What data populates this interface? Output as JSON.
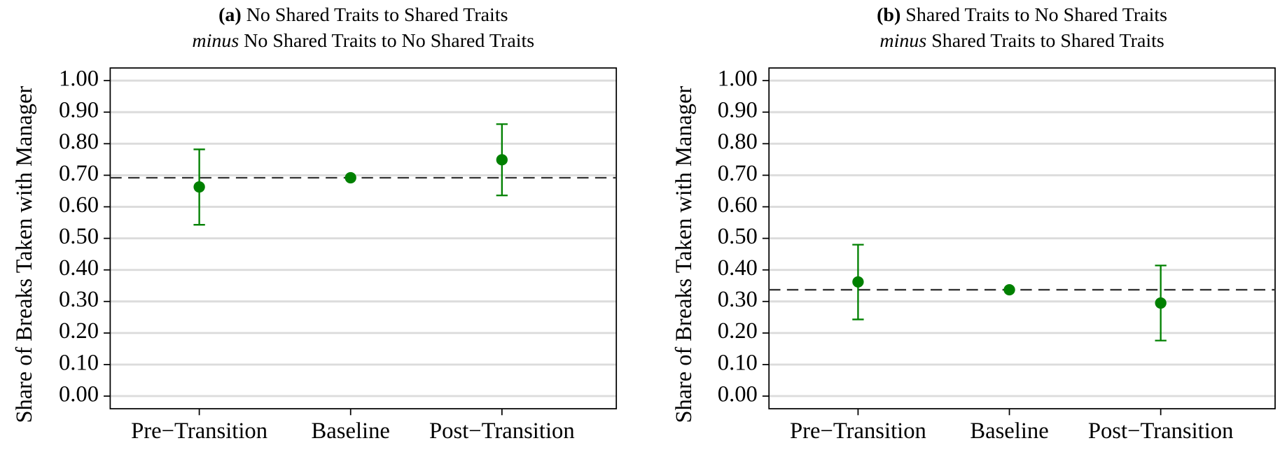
{
  "chart_data": [
    {
      "type": "errorbar",
      "title_bold": "(a)",
      "title_line1": "No Shared Traits to Shared Traits",
      "title_italic": "minus",
      "title_line2": "No Shared Traits to No Shared Traits",
      "y_label": "Share of Breaks Taken with Manager",
      "categories": [
        "Pre−Transition",
        "Baseline",
        "Post−Transition"
      ],
      "values": [
        0.663,
        0.692,
        0.749
      ],
      "lower": [
        0.543,
        null,
        0.636
      ],
      "upper": [
        0.782,
        null,
        0.862
      ],
      "reference_line": 0.692,
      "color": "#008000",
      "grid": true,
      "ylim": [
        -0.04,
        1.04
      ],
      "yticks": [
        {
          "value": 0,
          "label": "0.00"
        },
        {
          "value": 0.1,
          "label": "0.10"
        },
        {
          "value": 0.2,
          "label": "0.20"
        },
        {
          "value": 0.3,
          "label": "0.30"
        },
        {
          "value": 0.4,
          "label": "0.40"
        },
        {
          "value": 0.5,
          "label": "0.50"
        },
        {
          "value": 0.6,
          "label": "0.60"
        },
        {
          "value": 0.7,
          "label": "0.70"
        },
        {
          "value": 0.8,
          "label": "0.80"
        },
        {
          "value": 0.9,
          "label": "0.90"
        },
        {
          "value": 1,
          "label": "1.00"
        }
      ]
    },
    {
      "type": "errorbar",
      "title_bold": "(b)",
      "title_line1": "Shared Traits to No Shared Traits",
      "title_italic": "minus",
      "title_line2": "Shared Traits to Shared Traits",
      "y_label": "Share of Breaks Taken with Manager",
      "categories": [
        "Pre−Transition",
        "Baseline",
        "Post−Transition"
      ],
      "values": [
        0.362,
        0.337,
        0.295
      ],
      "lower": [
        0.243,
        null,
        0.176
      ],
      "upper": [
        0.48,
        null,
        0.414
      ],
      "reference_line": 0.337,
      "color": "#008000",
      "grid": true,
      "ylim": [
        -0.04,
        1.04
      ],
      "yticks": [
        {
          "value": 0,
          "label": "0.00"
        },
        {
          "value": 0.1,
          "label": "0.10"
        },
        {
          "value": 0.2,
          "label": "0.20"
        },
        {
          "value": 0.3,
          "label": "0.30"
        },
        {
          "value": 0.4,
          "label": "0.40"
        },
        {
          "value": 0.5,
          "label": "0.50"
        },
        {
          "value": 0.6,
          "label": "0.60"
        },
        {
          "value": 0.7,
          "label": "0.70"
        },
        {
          "value": 0.8,
          "label": "0.80"
        },
        {
          "value": 0.9,
          "label": "0.90"
        },
        {
          "value": 1,
          "label": "1.00"
        }
      ]
    }
  ]
}
